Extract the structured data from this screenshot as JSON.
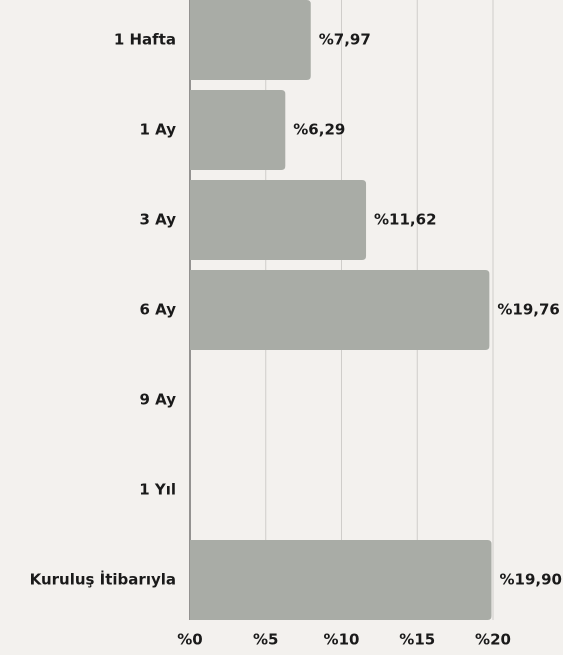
{
  "chart_data": {
    "type": "barh",
    "categories": [
      "1 Hafta",
      "1 Ay",
      "3 Ay",
      "6 Ay",
      "9 Ay",
      "1 Yıl",
      "Kuruluş İtibarıyla"
    ],
    "values": [
      7.97,
      6.29,
      11.62,
      19.76,
      null,
      null,
      19.9
    ],
    "value_labels": [
      "%7,97",
      "%6,29",
      "%11,62",
      "%19,76",
      null,
      null,
      "%19,90"
    ],
    "color": "#a9aca6",
    "xlim": [
      0,
      20
    ],
    "xticks": [
      {
        "value": 0,
        "label": "%0"
      },
      {
        "value": 5,
        "label": "%5"
      },
      {
        "value": 10,
        "label": "%10"
      },
      {
        "value": 15,
        "label": "%15"
      },
      {
        "value": 20,
        "label": "%20"
      }
    ],
    "grid": true
  }
}
